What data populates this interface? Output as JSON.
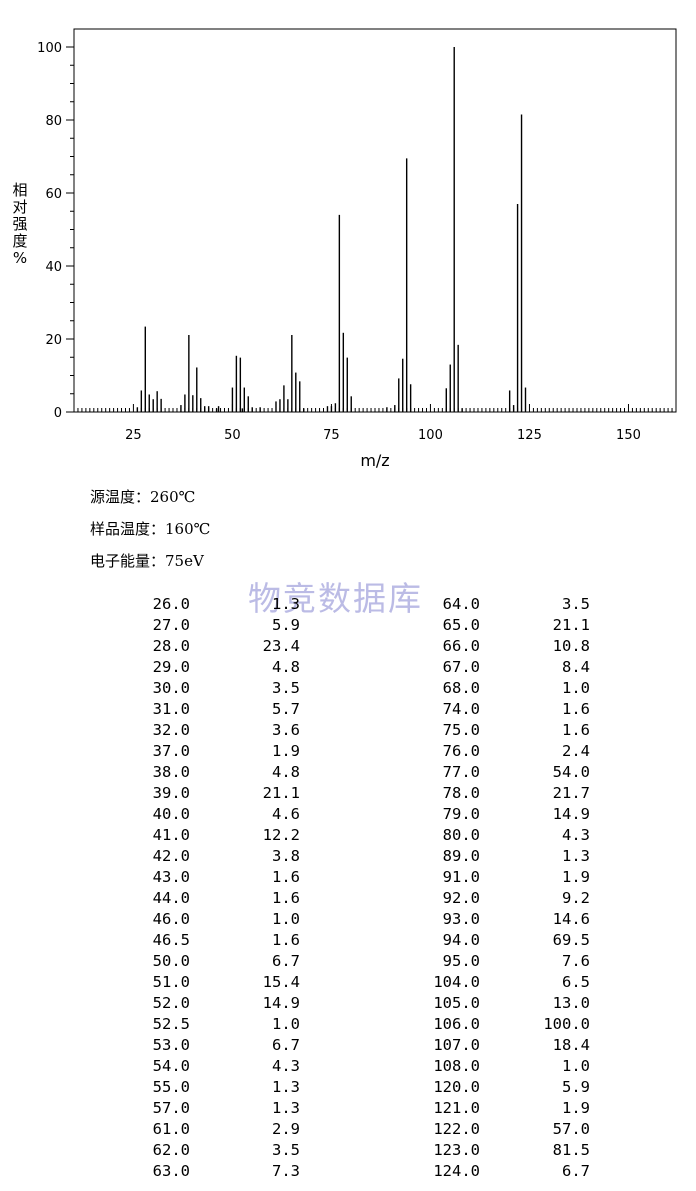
{
  "chart_data": {
    "type": "bar",
    "xlabel": "m/z",
    "ylabel_chars": [
      "相",
      "对",
      "强",
      "度",
      "%"
    ],
    "xlim": [
      10,
      162
    ],
    "ylim": [
      0,
      100
    ],
    "xticks": [
      25,
      50,
      75,
      100,
      125,
      150
    ],
    "yticks": [
      0,
      20,
      40,
      60,
      80,
      100
    ],
    "grid": false,
    "peaks": [
      [
        26.0,
        1.3
      ],
      [
        27.0,
        5.9
      ],
      [
        28.0,
        23.4
      ],
      [
        29.0,
        4.8
      ],
      [
        30.0,
        3.5
      ],
      [
        31.0,
        5.7
      ],
      [
        32.0,
        3.6
      ],
      [
        37.0,
        1.9
      ],
      [
        38.0,
        4.8
      ],
      [
        39.0,
        21.1
      ],
      [
        40.0,
        4.6
      ],
      [
        41.0,
        12.2
      ],
      [
        42.0,
        3.8
      ],
      [
        43.0,
        1.6
      ],
      [
        44.0,
        1.6
      ],
      [
        46.0,
        1.0
      ],
      [
        46.5,
        1.6
      ],
      [
        50.0,
        6.7
      ],
      [
        51.0,
        15.4
      ],
      [
        52.0,
        14.9
      ],
      [
        52.5,
        1.0
      ],
      [
        53.0,
        6.7
      ],
      [
        54.0,
        4.3
      ],
      [
        55.0,
        1.3
      ],
      [
        57.0,
        1.3
      ],
      [
        61.0,
        2.9
      ],
      [
        62.0,
        3.5
      ],
      [
        63.0,
        7.3
      ],
      [
        64.0,
        3.5
      ],
      [
        65.0,
        21.1
      ],
      [
        66.0,
        10.8
      ],
      [
        67.0,
        8.4
      ],
      [
        68.0,
        1.0
      ],
      [
        74.0,
        1.6
      ],
      [
        75.0,
        1.6
      ],
      [
        76.0,
        2.4
      ],
      [
        77.0,
        54.0
      ],
      [
        78.0,
        21.7
      ],
      [
        79.0,
        14.9
      ],
      [
        80.0,
        4.3
      ],
      [
        89.0,
        1.3
      ],
      [
        91.0,
        1.9
      ],
      [
        92.0,
        9.2
      ],
      [
        93.0,
        14.6
      ],
      [
        94.0,
        69.5
      ],
      [
        95.0,
        7.6
      ],
      [
        104.0,
        6.5
      ],
      [
        105.0,
        13.0
      ],
      [
        106.0,
        100.0
      ],
      [
        107.0,
        18.4
      ],
      [
        108.0,
        1.0
      ],
      [
        120.0,
        5.9
      ],
      [
        121.0,
        1.9
      ],
      [
        122.0,
        57.0
      ],
      [
        123.0,
        81.5
      ],
      [
        124.0,
        6.7
      ]
    ]
  },
  "conditions": {
    "source_temp": "源温度：260℃",
    "sample_temp": "样品温度：160℃",
    "electron_energy": "电子能量：75eV"
  },
  "watermark": "物竞数据库",
  "table": {
    "left": [
      [
        "26.0",
        "1.3"
      ],
      [
        "27.0",
        "5.9"
      ],
      [
        "28.0",
        "23.4"
      ],
      [
        "29.0",
        "4.8"
      ],
      [
        "30.0",
        "3.5"
      ],
      [
        "31.0",
        "5.7"
      ],
      [
        "32.0",
        "3.6"
      ],
      [
        "37.0",
        "1.9"
      ],
      [
        "38.0",
        "4.8"
      ],
      [
        "39.0",
        "21.1"
      ],
      [
        "40.0",
        "4.6"
      ],
      [
        "41.0",
        "12.2"
      ],
      [
        "42.0",
        "3.8"
      ],
      [
        "43.0",
        "1.6"
      ],
      [
        "44.0",
        "1.6"
      ],
      [
        "46.0",
        "1.0"
      ],
      [
        "46.5",
        "1.6"
      ],
      [
        "50.0",
        "6.7"
      ],
      [
        "51.0",
        "15.4"
      ],
      [
        "52.0",
        "14.9"
      ],
      [
        "52.5",
        "1.0"
      ],
      [
        "53.0",
        "6.7"
      ],
      [
        "54.0",
        "4.3"
      ],
      [
        "55.0",
        "1.3"
      ],
      [
        "57.0",
        "1.3"
      ],
      [
        "61.0",
        "2.9"
      ],
      [
        "62.0",
        "3.5"
      ],
      [
        "63.0",
        "7.3"
      ]
    ],
    "right": [
      [
        "64.0",
        "3.5"
      ],
      [
        "65.0",
        "21.1"
      ],
      [
        "66.0",
        "10.8"
      ],
      [
        "67.0",
        "8.4"
      ],
      [
        "68.0",
        "1.0"
      ],
      [
        "74.0",
        "1.6"
      ],
      [
        "75.0",
        "1.6"
      ],
      [
        "76.0",
        "2.4"
      ],
      [
        "77.0",
        "54.0"
      ],
      [
        "78.0",
        "21.7"
      ],
      [
        "79.0",
        "14.9"
      ],
      [
        "80.0",
        "4.3"
      ],
      [
        "89.0",
        "1.3"
      ],
      [
        "91.0",
        "1.9"
      ],
      [
        "92.0",
        "9.2"
      ],
      [
        "93.0",
        "14.6"
      ],
      [
        "94.0",
        "69.5"
      ],
      [
        "95.0",
        "7.6"
      ],
      [
        "104.0",
        "6.5"
      ],
      [
        "105.0",
        "13.0"
      ],
      [
        "106.0",
        "100.0"
      ],
      [
        "107.0",
        "18.4"
      ],
      [
        "108.0",
        "1.0"
      ],
      [
        "120.0",
        "5.9"
      ],
      [
        "121.0",
        "1.9"
      ],
      [
        "122.0",
        "57.0"
      ],
      [
        "123.0",
        "81.5"
      ],
      [
        "124.0",
        "6.7"
      ]
    ]
  }
}
